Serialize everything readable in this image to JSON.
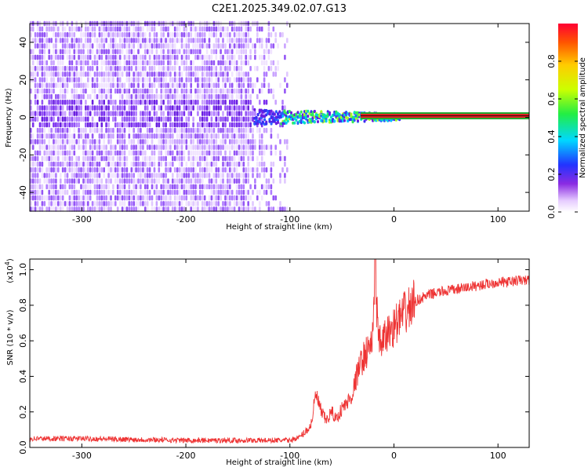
{
  "title": "C2E1.2025.349.02.07.G13",
  "chart_data": [
    {
      "type": "heatmap",
      "xlabel": "Height of straight line (km)",
      "ylabel": "Frequency (Hz)",
      "xlim": [
        -350,
        130
      ],
      "ylim": [
        -50,
        50
      ],
      "xticks": [
        -300,
        -200,
        -100,
        0,
        100
      ],
      "yticks": [
        -40,
        -20,
        0,
        20,
        40
      ],
      "xtick_labels": [
        "-300",
        "-200",
        "-100",
        "0",
        "100"
      ],
      "ytick_labels": [
        "-40",
        "-20",
        "0",
        "20",
        "40"
      ],
      "colorbar": {
        "label": "Normalized spectral amplitude",
        "range": [
          0,
          1
        ],
        "ticks": [
          0.0,
          0.2,
          0.4,
          0.6,
          0.8
        ],
        "tick_labels": [
          "0.0",
          "0.2",
          "0.4",
          "0.6",
          "0.8"
        ]
      },
      "signal_line_frequency": 0
    },
    {
      "type": "line",
      "xlabel": "Height of straight line (km)",
      "ylabel": "SNR (10 * v/v)",
      "scale_label": "(x10",
      "scale_exponent": "4",
      "scale_close": ")",
      "xlim": [
        -350,
        130
      ],
      "ylim": [
        0,
        1.06
      ],
      "xticks": [
        -300,
        -200,
        -100,
        0,
        100
      ],
      "yticks": [
        0.0,
        0.2,
        0.4,
        0.6,
        0.8,
        1.0
      ],
      "xtick_labels": [
        "-300",
        "-200",
        "-100",
        "0",
        "100"
      ],
      "ytick_labels": [
        "0.0",
        "0.2",
        "0.4",
        "0.6",
        "0.8",
        "1.0"
      ],
      "color": "#ee3333",
      "series": [
        {
          "x": [
            -350,
            -300,
            -250,
            -200,
            -150,
            -100,
            -90,
            -80,
            -75,
            -70,
            -65,
            -60,
            -55,
            -50,
            -45,
            -40,
            -35,
            -30,
            -25,
            -20,
            -18,
            -15,
            -10,
            -5,
            0,
            5,
            10,
            20,
            30,
            40,
            50,
            60,
            70,
            80,
            90,
            100,
            110,
            120,
            130
          ],
          "y": [
            0.05,
            0.05,
            0.045,
            0.04,
            0.04,
            0.04,
            0.06,
            0.12,
            0.3,
            0.2,
            0.15,
            0.2,
            0.16,
            0.22,
            0.25,
            0.3,
            0.42,
            0.5,
            0.55,
            0.62,
            1.05,
            0.58,
            0.6,
            0.65,
            0.68,
            0.72,
            0.75,
            0.82,
            0.85,
            0.87,
            0.88,
            0.89,
            0.9,
            0.91,
            0.92,
            0.93,
            0.93,
            0.94,
            0.94
          ]
        }
      ]
    }
  ]
}
